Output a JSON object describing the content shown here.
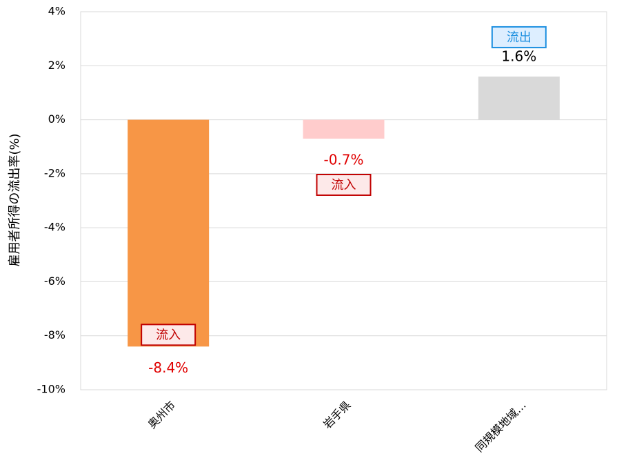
{
  "chart_data": {
    "type": "bar",
    "ylabel": "雇用者所得の流出率(%)",
    "categories": [
      "奥州市",
      "岩手県",
      "同規模地域…"
    ],
    "values": [
      -8.4,
      -0.7,
      1.6
    ],
    "value_labels": [
      "-8.4%",
      "-0.7%",
      "1.6%"
    ],
    "colors": [
      "#f79646",
      "#ffcccc",
      "#d9d9d9"
    ],
    "annotations": [
      "流入",
      "流入",
      "流出"
    ],
    "ylim": [
      -10,
      4
    ],
    "yticks": [
      {
        "value": -10,
        "label": "-10%"
      },
      {
        "value": -8,
        "label": "-8%"
      },
      {
        "value": -6,
        "label": "-6%"
      },
      {
        "value": -4,
        "label": "-4%"
      },
      {
        "value": -2,
        "label": "-2%"
      },
      {
        "value": 0,
        "label": "0%"
      },
      {
        "value": 2,
        "label": "2%"
      },
      {
        "value": 4,
        "label": "4%"
      }
    ],
    "grid": true
  }
}
